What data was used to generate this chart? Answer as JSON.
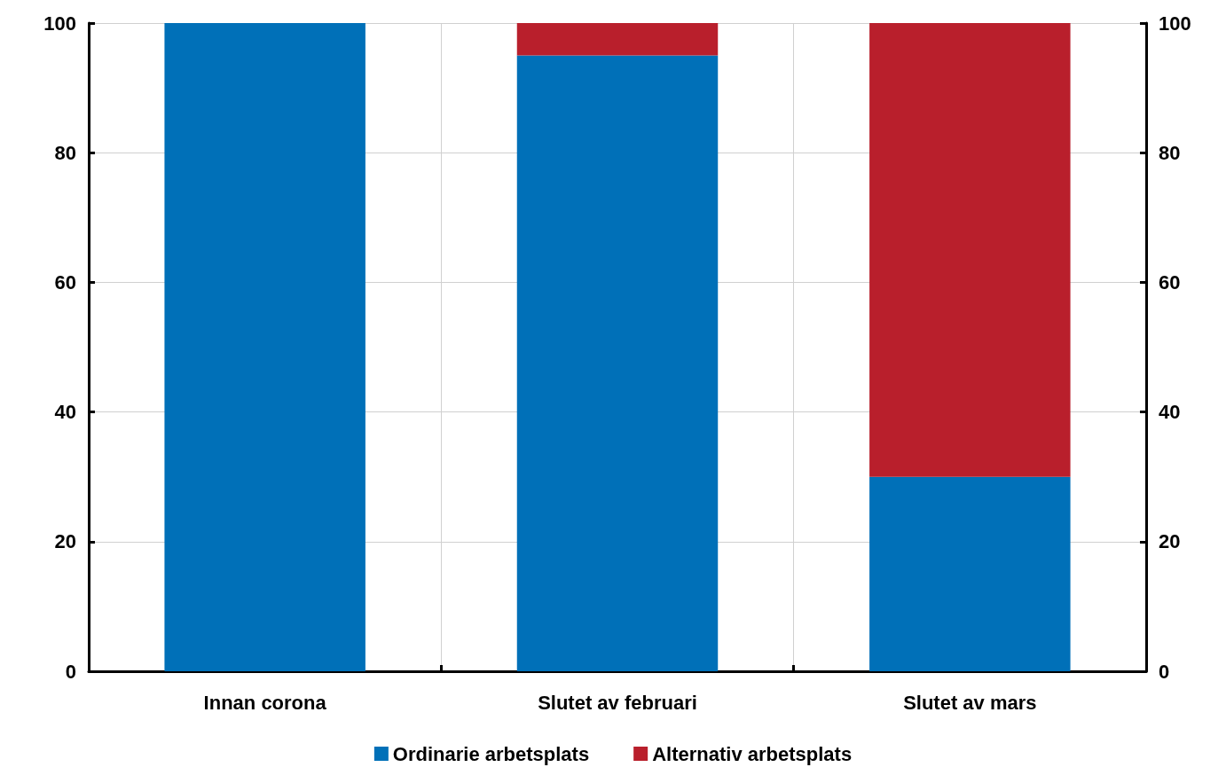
{
  "chart_data": {
    "type": "bar",
    "stacked": true,
    "categories": [
      "Innan corona",
      "Slutet av februari",
      "Slutet av mars"
    ],
    "series": [
      {
        "name": "Ordinarie arbetsplats",
        "color": "#0070b8",
        "values": [
          100,
          95,
          30
        ]
      },
      {
        "name": "Alternativ arbetsplats",
        "color": "#b91f2c",
        "values": [
          0,
          5,
          70
        ]
      }
    ],
    "ylim": [
      0,
      100
    ],
    "yticks": [
      0,
      20,
      40,
      60,
      80,
      100
    ],
    "y2lim": [
      0,
      100
    ],
    "y2ticks": [
      0,
      20,
      40,
      60,
      80,
      100
    ],
    "grid": true,
    "legend": "bottom"
  }
}
